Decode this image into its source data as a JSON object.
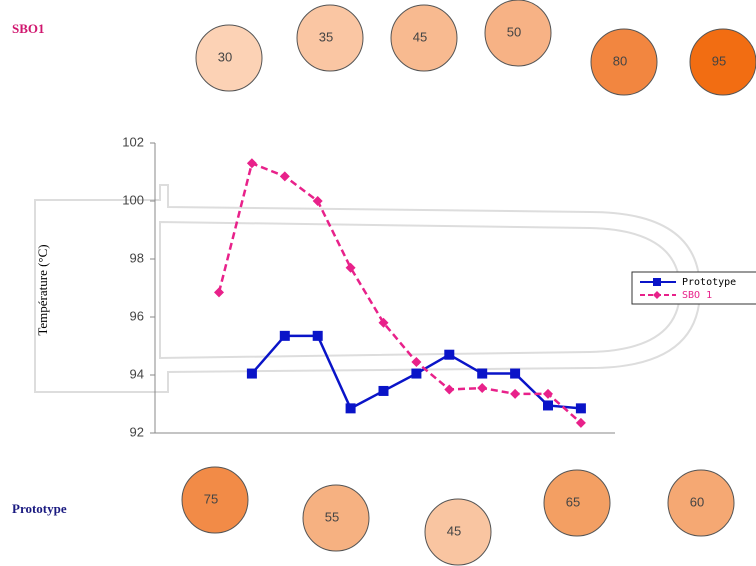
{
  "chart_data": {
    "type": "line",
    "categories": [
      null,
      null,
      null,
      null,
      null,
      null,
      null,
      null,
      null,
      null,
      null,
      null
    ],
    "series": [
      {
        "name": "Prototype",
        "color": "#0a14c8",
        "marker": "square",
        "dash": false,
        "values": [
          null,
          94.05,
          95.35,
          95.35,
          92.85,
          93.45,
          94.05,
          94.7,
          94.05,
          94.05,
          92.95,
          92.85
        ]
      },
      {
        "name": "SBO 1",
        "color": "#e8218a",
        "marker": "diamond",
        "dash": true,
        "values": [
          96.85,
          101.3,
          100.85,
          100.0,
          97.7,
          95.8,
          94.45,
          93.5,
          93.55,
          93.35,
          93.35,
          92.35
        ]
      }
    ],
    "y_label": "Température (°C)",
    "ylim": [
      92,
      102
    ],
    "yticks": [
      92,
      94,
      96,
      98,
      100,
      102
    ],
    "legend": "right",
    "grid": false
  },
  "sbo1_panel": {
    "label": "SBO1",
    "circles": [
      {
        "value": 30,
        "color": "#fcd2b5"
      },
      {
        "value": 35,
        "color": "#fac6a3"
      },
      {
        "value": 45,
        "color": "#f8ba90"
      },
      {
        "value": 50,
        "color": "#f7b285"
      },
      {
        "value": 80,
        "color": "#f28640"
      },
      {
        "value": 95,
        "color": "#f26d12"
      }
    ]
  },
  "prototype_panel": {
    "label": "Prototype",
    "circles": [
      {
        "value": 75,
        "color": "#f28b47"
      },
      {
        "value": 55,
        "color": "#f6b181"
      },
      {
        "value": 45,
        "color": "#f9c5a1"
      },
      {
        "value": 65,
        "color": "#f39f63"
      },
      {
        "value": 60,
        "color": "#f5a873"
      }
    ]
  }
}
